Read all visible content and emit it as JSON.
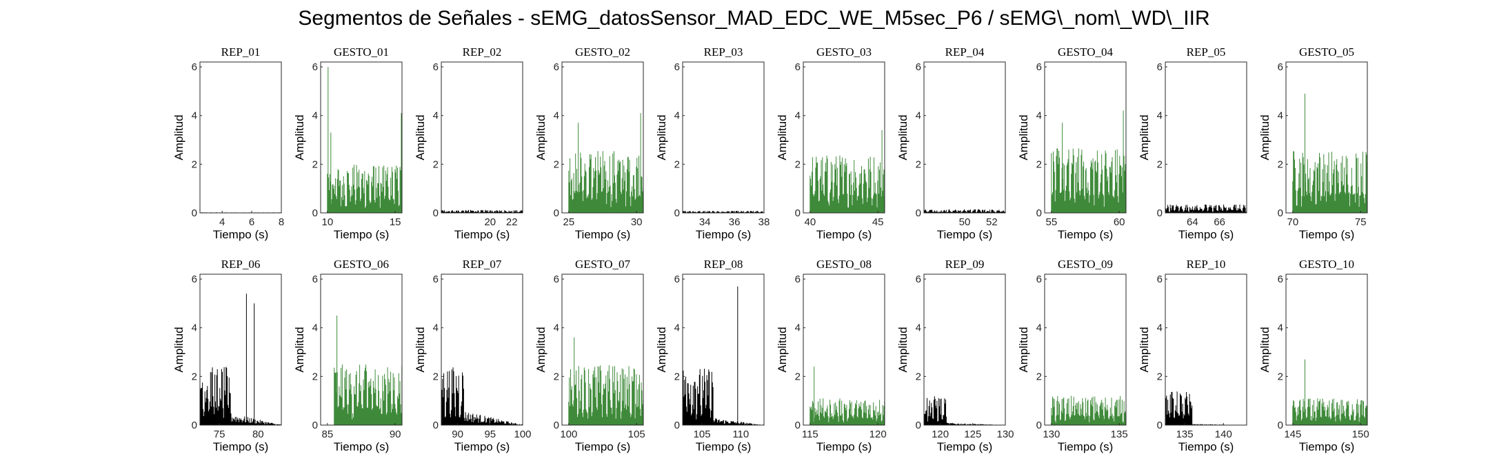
{
  "figure_title": "Segmentos de Señales - sEMG_datosSensor_MAD_EDC_WE_M5sec_P6 / sEMG\\_nom\\_WD\\_IIR",
  "colors": {
    "rep": "#000000",
    "gesto": "#3f8a3a",
    "axis": "#262626"
  },
  "chart_data": [
    {
      "type": "line",
      "title": "REP_01",
      "kind": "rep",
      "xlim": [
        2.5,
        8
      ],
      "xticks": [
        4,
        6,
        8
      ],
      "ylim": [
        0,
        6.2
      ],
      "yticks": [
        0,
        2,
        4,
        6
      ],
      "xlabel": "Tiempo (s)",
      "ylabel": "Amplitud",
      "signal": {
        "start": 2.5,
        "end": 8,
        "active_end": 8,
        "base": 0.02,
        "peaks": [],
        "decay": 0
      }
    },
    {
      "type": "line",
      "title": "GESTO_01",
      "kind": "gesto",
      "xlim": [
        9.5,
        15.5
      ],
      "xticks": [
        10,
        15
      ],
      "ylim": [
        0,
        6.2
      ],
      "yticks": [
        0,
        2,
        4,
        6
      ],
      "xlabel": "Tiempo (s)",
      "ylabel": "Amplitud",
      "signal": {
        "start": 10,
        "end": 15.5,
        "active_end": 15.5,
        "base": 2.0,
        "peaks": [
          [
            10.05,
            6.0
          ],
          [
            10.25,
            3.3
          ],
          [
            15.45,
            4.1
          ]
        ],
        "decay": 0
      }
    },
    {
      "type": "line",
      "title": "REP_02",
      "kind": "rep",
      "xlim": [
        15.5,
        23
      ],
      "xticks": [
        20,
        22
      ],
      "ylim": [
        0,
        6.2
      ],
      "yticks": [
        0,
        2,
        4,
        6
      ],
      "xlabel": "Tiempo (s)",
      "ylabel": "Amplitud",
      "signal": {
        "start": 15.5,
        "end": 23,
        "active_end": 23,
        "base": 0.12,
        "peaks": [],
        "decay": 0
      }
    },
    {
      "type": "line",
      "title": "GESTO_02",
      "kind": "gesto",
      "xlim": [
        24.5,
        30.5
      ],
      "xticks": [
        25,
        30
      ],
      "ylim": [
        0,
        6.2
      ],
      "yticks": [
        0,
        2,
        4,
        6
      ],
      "xlabel": "Tiempo (s)",
      "ylabel": "Amplitud",
      "signal": {
        "start": 25,
        "end": 30.5,
        "active_end": 30.5,
        "base": 2.6,
        "peaks": [
          [
            25.7,
            3.7
          ],
          [
            30.3,
            4.1
          ]
        ],
        "decay": 0
      }
    },
    {
      "type": "line",
      "title": "REP_03",
      "kind": "rep",
      "xlim": [
        32.5,
        38
      ],
      "xticks": [
        34,
        36,
        38
      ],
      "ylim": [
        0,
        6.2
      ],
      "yticks": [
        0,
        2,
        4,
        6
      ],
      "xlabel": "Tiempo (s)",
      "ylabel": "Amplitud",
      "signal": {
        "start": 32.5,
        "end": 38,
        "active_end": 38,
        "base": 0.08,
        "peaks": [],
        "decay": 0
      }
    },
    {
      "type": "line",
      "title": "GESTO_03",
      "kind": "gesto",
      "xlim": [
        39.5,
        45.5
      ],
      "xticks": [
        40,
        45
      ],
      "ylim": [
        0,
        6.2
      ],
      "yticks": [
        0,
        2,
        4,
        6
      ],
      "xlabel": "Tiempo (s)",
      "ylabel": "Amplitud",
      "signal": {
        "start": 40,
        "end": 45.5,
        "active_end": 45.5,
        "base": 2.4,
        "peaks": [
          [
            45.3,
            3.4
          ]
        ],
        "decay": 0
      }
    },
    {
      "type": "line",
      "title": "REP_04",
      "kind": "rep",
      "xlim": [
        47,
        53
      ],
      "xticks": [
        50,
        52
      ],
      "ylim": [
        0,
        6.2
      ],
      "yticks": [
        0,
        2,
        4,
        6
      ],
      "xlabel": "Tiempo (s)",
      "ylabel": "Amplitud",
      "signal": {
        "start": 47,
        "end": 53,
        "active_end": 53,
        "base": 0.15,
        "peaks": [],
        "decay": 0
      }
    },
    {
      "type": "line",
      "title": "GESTO_04",
      "kind": "gesto",
      "xlim": [
        54.5,
        60.5
      ],
      "xticks": [
        55,
        60
      ],
      "ylim": [
        0,
        6.2
      ],
      "yticks": [
        0,
        2,
        4,
        6
      ],
      "xlabel": "Tiempo (s)",
      "ylabel": "Amplitud",
      "signal": {
        "start": 55,
        "end": 60.5,
        "active_end": 60.5,
        "base": 2.7,
        "peaks": [
          [
            55.8,
            3.7
          ],
          [
            60.3,
            4.2
          ]
        ],
        "decay": 0
      }
    },
    {
      "type": "line",
      "title": "REP_05",
      "kind": "rep",
      "xlim": [
        62,
        68
      ],
      "xticks": [
        64,
        66
      ],
      "ylim": [
        0,
        6.2
      ],
      "yticks": [
        0,
        2,
        4,
        6
      ],
      "xlabel": "Tiempo (s)",
      "ylabel": "Amplitud",
      "signal": {
        "start": 62,
        "end": 68,
        "active_end": 68,
        "base": 0.35,
        "peaks": [],
        "decay": 0
      }
    },
    {
      "type": "line",
      "title": "GESTO_05",
      "kind": "gesto",
      "xlim": [
        69.5,
        75.5
      ],
      "xticks": [
        70,
        75
      ],
      "ylim": [
        0,
        6.2
      ],
      "yticks": [
        0,
        2,
        4,
        6
      ],
      "xlabel": "Tiempo (s)",
      "ylabel": "Amplitud",
      "signal": {
        "start": 70,
        "end": 75.5,
        "active_end": 75.5,
        "base": 2.6,
        "peaks": [
          [
            70.9,
            4.9
          ]
        ],
        "decay": 0
      }
    },
    {
      "type": "line",
      "title": "REP_06",
      "kind": "rep",
      "xlim": [
        72.5,
        83
      ],
      "xticks": [
        75,
        80
      ],
      "ylim": [
        0,
        6.2
      ],
      "yticks": [
        0,
        2,
        4,
        6
      ],
      "xlabel": "Tiempo (s)",
      "ylabel": "Amplitud",
      "signal": {
        "start": 72.5,
        "end": 83,
        "active_end": 76.5,
        "base": 2.4,
        "peaks": [
          [
            78.5,
            5.4
          ],
          [
            79.5,
            5.0
          ]
        ],
        "decay": 0.5
      }
    },
    {
      "type": "line",
      "title": "GESTO_06",
      "kind": "gesto",
      "xlim": [
        84.5,
        90.5
      ],
      "xticks": [
        85,
        90
      ],
      "ylim": [
        0,
        6.2
      ],
      "yticks": [
        0,
        2,
        4,
        6
      ],
      "xlabel": "Tiempo (s)",
      "ylabel": "Amplitud",
      "signal": {
        "start": 85.5,
        "end": 90.5,
        "active_end": 90.5,
        "base": 2.5,
        "peaks": [
          [
            85.7,
            4.5
          ]
        ],
        "decay": 0
      }
    },
    {
      "type": "line",
      "title": "REP_07",
      "kind": "rep",
      "xlim": [
        87.5,
        100
      ],
      "xticks": [
        90,
        95,
        100
      ],
      "ylim": [
        0,
        6.2
      ],
      "yticks": [
        0,
        2,
        4,
        6
      ],
      "xlabel": "Tiempo (s)",
      "ylabel": "Amplitud",
      "signal": {
        "start": 87.5,
        "end": 100,
        "active_end": 91,
        "base": 2.4,
        "peaks": [],
        "decay": 0.6
      }
    },
    {
      "type": "line",
      "title": "GESTO_07",
      "kind": "gesto",
      "xlim": [
        99.5,
        105.5
      ],
      "xticks": [
        100,
        105
      ],
      "ylim": [
        0,
        6.2
      ],
      "yticks": [
        0,
        2,
        4,
        6
      ],
      "xlabel": "Tiempo (s)",
      "ylabel": "Amplitud",
      "signal": {
        "start": 100,
        "end": 105.5,
        "active_end": 105.5,
        "base": 2.5,
        "peaks": [
          [
            100.4,
            3.6
          ]
        ],
        "decay": 0
      }
    },
    {
      "type": "line",
      "title": "REP_08",
      "kind": "rep",
      "xlim": [
        102.5,
        113
      ],
      "xticks": [
        105,
        110
      ],
      "ylim": [
        0,
        6.2
      ],
      "yticks": [
        0,
        2,
        4,
        6
      ],
      "xlabel": "Tiempo (s)",
      "ylabel": "Amplitud",
      "signal": {
        "start": 102.5,
        "end": 113,
        "active_end": 106.5,
        "base": 2.4,
        "peaks": [
          [
            109.6,
            5.7
          ]
        ],
        "decay": 0.3
      }
    },
    {
      "type": "line",
      "title": "GESTO_08",
      "kind": "gesto",
      "xlim": [
        114.5,
        120.5
      ],
      "xticks": [
        115,
        120
      ],
      "ylim": [
        0,
        6.2
      ],
      "yticks": [
        0,
        2,
        4,
        6
      ],
      "xlabel": "Tiempo (s)",
      "ylabel": "Amplitud",
      "signal": {
        "start": 115,
        "end": 120.5,
        "active_end": 120.5,
        "base": 1.1,
        "peaks": [
          [
            115.3,
            2.4
          ]
        ],
        "decay": 0
      }
    },
    {
      "type": "line",
      "title": "REP_09",
      "kind": "rep",
      "xlim": [
        117.5,
        130
      ],
      "xticks": [
        120,
        125,
        130
      ],
      "ylim": [
        0,
        6.2
      ],
      "yticks": [
        0,
        2,
        4,
        6
      ],
      "xlabel": "Tiempo (s)",
      "ylabel": "Amplitud",
      "signal": {
        "start": 117.5,
        "end": 130,
        "active_end": 121,
        "base": 1.2,
        "peaks": [],
        "decay": 0.1
      }
    },
    {
      "type": "line",
      "title": "GESTO_09",
      "kind": "gesto",
      "xlim": [
        129.5,
        135.5
      ],
      "xticks": [
        130,
        135
      ],
      "ylim": [
        0,
        6.2
      ],
      "yticks": [
        0,
        2,
        4,
        6
      ],
      "xlabel": "Tiempo (s)",
      "ylabel": "Amplitud",
      "signal": {
        "start": 130,
        "end": 135.5,
        "active_end": 135.5,
        "base": 1.2,
        "peaks": [],
        "decay": 0
      }
    },
    {
      "type": "line",
      "title": "REP_10",
      "kind": "rep",
      "xlim": [
        132.5,
        143
      ],
      "xticks": [
        135,
        140
      ],
      "ylim": [
        0,
        6.2
      ],
      "yticks": [
        0,
        2,
        4,
        6
      ],
      "xlabel": "Tiempo (s)",
      "ylabel": "Amplitud",
      "signal": {
        "start": 132.5,
        "end": 143,
        "active_end": 136,
        "base": 1.4,
        "peaks": [],
        "decay": 0.05
      }
    },
    {
      "type": "line",
      "title": "GESTO_10",
      "kind": "gesto",
      "xlim": [
        144.5,
        150.5
      ],
      "xticks": [
        145,
        150
      ],
      "ylim": [
        0,
        6.2
      ],
      "yticks": [
        0,
        2,
        4,
        6
      ],
      "xlabel": "Tiempo (s)",
      "ylabel": "Amplitud",
      "signal": {
        "start": 145,
        "end": 150.5,
        "active_end": 150.5,
        "base": 1.1,
        "peaks": [
          [
            145.9,
            2.7
          ]
        ],
        "decay": 0
      }
    }
  ]
}
